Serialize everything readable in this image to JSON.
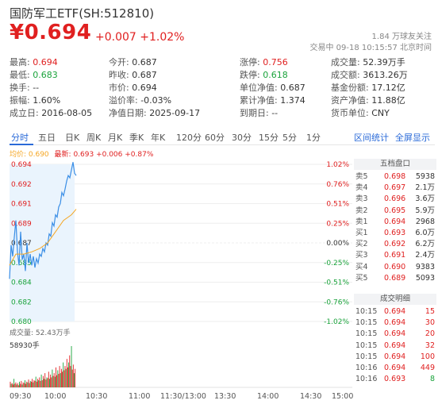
{
  "header": {
    "title": "国防军工ETF(SH:512810)",
    "price": "¥0.694",
    "change": "+0.007 +1.02%",
    "follow": "1.84 万球友关注",
    "status": "交易中 09-18 10:15:57 北京时间"
  },
  "stats": [
    {
      "k": "最高:",
      "v": "0.694",
      "c": "red"
    },
    {
      "k": "今开:",
      "v": "0.687",
      "c": ""
    },
    {
      "k": "涨停:",
      "v": "0.756",
      "c": "red"
    },
    {
      "k": "成交量:",
      "v": "52.39万手",
      "c": ""
    },
    {
      "k": "最低:",
      "v": "0.683",
      "c": "green"
    },
    {
      "k": "昨收:",
      "v": "0.687",
      "c": ""
    },
    {
      "k": "跌停:",
      "v": "0.618",
      "c": "green"
    },
    {
      "k": "成交额:",
      "v": "3613.26万",
      "c": ""
    },
    {
      "k": "换手:",
      "v": "--",
      "c": ""
    },
    {
      "k": "市价:",
      "v": "0.694",
      "c": ""
    },
    {
      "k": "单位净值:",
      "v": "0.687",
      "c": ""
    },
    {
      "k": "基金份额:",
      "v": "17.12亿",
      "c": ""
    },
    {
      "k": "振幅:",
      "v": "1.60%",
      "c": ""
    },
    {
      "k": "溢价率:",
      "v": "-0.03%",
      "c": ""
    },
    {
      "k": "累计净值:",
      "v": "1.374",
      "c": ""
    },
    {
      "k": "资产净值:",
      "v": "11.88亿",
      "c": ""
    },
    {
      "k": "成立日:",
      "v": "2016-08-05",
      "c": ""
    },
    {
      "k": "净值日期:",
      "v": "2025-09-17",
      "c": ""
    },
    {
      "k": "到期日:",
      "v": "--",
      "c": ""
    },
    {
      "k": "货币单位:",
      "v": "CNY",
      "c": ""
    }
  ],
  "tabs": [
    "分时",
    "五日",
    "日K",
    "周K",
    "月K",
    "季K",
    "年K",
    "120分",
    "60分",
    "30分",
    "15分",
    "5分",
    "1分"
  ],
  "tabs_right": [
    "区间统计",
    "全屏显示"
  ],
  "legend": {
    "avg": "均价: 0.690",
    "latest": "最新: 0.693 +0.006 +0.87%"
  },
  "left_axis": [
    "0.694",
    "0.692",
    "0.691",
    "0.689",
    "0.687",
    "0.685",
    "0.684",
    "0.682",
    "0.680"
  ],
  "right_axis": [
    "1.02%",
    "0.76%",
    "0.51%",
    "0.25%",
    "0.00%",
    "-0.25%",
    "-0.51%",
    "-0.76%",
    "-1.02%"
  ],
  "volume": {
    "label": "成交量: 52.43万手",
    "max": "58930手",
    "bars": [
      8,
      5,
      6,
      4,
      12,
      5,
      7,
      4,
      6,
      3,
      8,
      5,
      9,
      4,
      7,
      6,
      10,
      5,
      8,
      7,
      11,
      6,
      9,
      8,
      12,
      7,
      10,
      9,
      15,
      8,
      12,
      10,
      14,
      9,
      18,
      10,
      16,
      12,
      20,
      11,
      14,
      13,
      22,
      12,
      18,
      14,
      25,
      16,
      20,
      15,
      28,
      17,
      24,
      19,
      30,
      20,
      26,
      22,
      35,
      24,
      30,
      26,
      40,
      28,
      35,
      45,
      30,
      58,
      25,
      32,
      20,
      26
    ]
  },
  "time_axis": [
    "09:30",
    "10:00",
    "10:30",
    "11:00",
    "11:30/13:00",
    "13:30",
    "14:00",
    "14:30",
    "15:00"
  ],
  "orderbook": {
    "title": "五档盘口",
    "sells": [
      {
        "label": "卖5",
        "price": "0.698",
        "vol": "5938"
      },
      {
        "label": "卖4",
        "price": "0.697",
        "vol": "2.1万"
      },
      {
        "label": "卖3",
        "price": "0.696",
        "vol": "3.6万"
      },
      {
        "label": "卖2",
        "price": "0.695",
        "vol": "5.9万"
      },
      {
        "label": "卖1",
        "price": "0.694",
        "vol": "2968"
      }
    ],
    "buys": [
      {
        "label": "买1",
        "price": "0.693",
        "vol": "6.0万"
      },
      {
        "label": "买2",
        "price": "0.692",
        "vol": "6.2万"
      },
      {
        "label": "买3",
        "price": "0.691",
        "vol": "2.4万"
      },
      {
        "label": "买4",
        "price": "0.690",
        "vol": "9383"
      },
      {
        "label": "买5",
        "price": "0.689",
        "vol": "5093"
      }
    ]
  },
  "trades": {
    "title": "成交明细",
    "rows": [
      {
        "t": "10:15",
        "p": "0.694",
        "v": "15"
      },
      {
        "t": "10:15",
        "p": "0.694",
        "v": "30"
      },
      {
        "t": "10:15",
        "p": "0.694",
        "v": "20"
      },
      {
        "t": "10:15",
        "p": "0.694",
        "v": "32"
      },
      {
        "t": "10:15",
        "p": "0.694",
        "v": "100"
      },
      {
        "t": "10:16",
        "p": "0.694",
        "v": "449"
      },
      {
        "t": "10:16",
        "p": "0.693",
        "v": "8"
      }
    ]
  },
  "colors": {
    "up": "#e02020",
    "down": "#1aa33b",
    "line": "#3a8ee6",
    "avg": "#f5a623",
    "accent": "#2a6ad8"
  }
}
